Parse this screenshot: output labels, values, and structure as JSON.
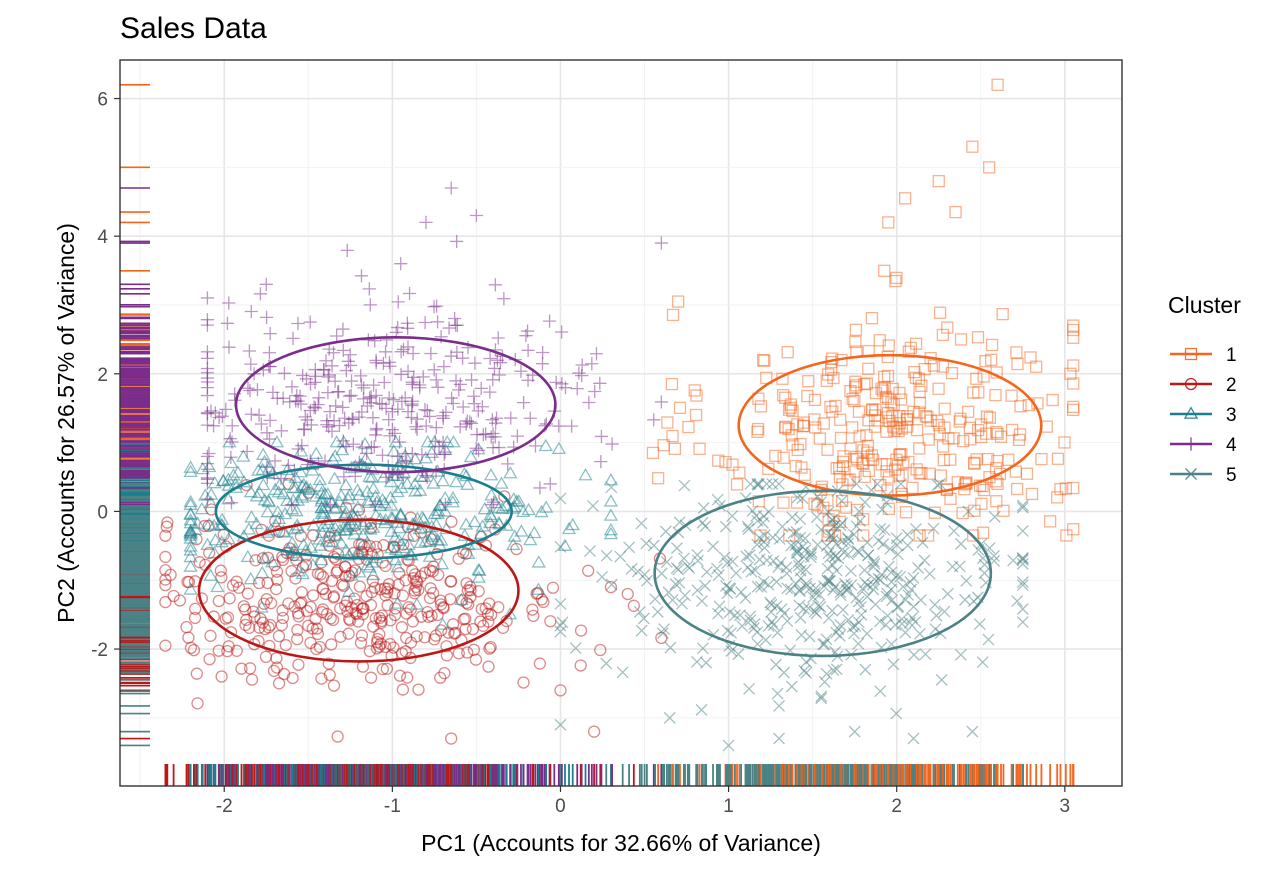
{
  "chart_data": {
    "type": "scatter",
    "title": "Sales Data",
    "xlabel": "PC1 (Accounts for 32.66% of Variance)",
    "ylabel": "PC2 (Accounts for 26.57% of Variance)",
    "xlim": [
      -2.62,
      3.34
    ],
    "ylim": [
      -3.99,
      6.56
    ],
    "xticks": [
      -2,
      -1,
      0,
      1,
      2,
      3
    ],
    "yticks": [
      -2,
      0,
      2,
      4,
      6
    ],
    "grid": true,
    "rug": [
      "left",
      "bottom"
    ],
    "legend": {
      "title": "Cluster",
      "position": "right",
      "items": [
        {
          "label": "1",
          "color": "#f4651e",
          "marker": "square"
        },
        {
          "label": "2",
          "color": "#bb1717",
          "marker": "circle"
        },
        {
          "label": "3",
          "color": "#1b7f8e",
          "marker": "triangle"
        },
        {
          "label": "4",
          "color": "#7b2d8b",
          "marker": "plus"
        },
        {
          "label": "5",
          "color": "#4a8286",
          "marker": "cross"
        }
      ]
    },
    "series": [
      {
        "name": "1",
        "color": "#f4651e",
        "marker": "square",
        "count": 330,
        "center": [
          2.0,
          1.2
        ],
        "spread": [
          0.55,
          0.85
        ],
        "x_range": [
          0.55,
          3.05
        ],
        "y_range": [
          -0.35,
          6.2
        ],
        "extremes": [
          [
            2.6,
            6.2
          ],
          [
            2.45,
            5.3
          ],
          [
            2.55,
            5.0
          ],
          [
            2.25,
            4.8
          ],
          [
            2.35,
            4.35
          ],
          [
            2.05,
            4.55
          ],
          [
            1.95,
            4.2
          ],
          [
            0.7,
            3.05
          ],
          [
            3.05,
            2.7
          ]
        ],
        "ellipse": {
          "cx": 1.96,
          "cy": 1.25,
          "rx": 0.9,
          "ry": 1.02
        }
      },
      {
        "name": "2",
        "color": "#bb1717",
        "marker": "circle",
        "count": 380,
        "center": [
          -1.2,
          -1.3
        ],
        "spread": [
          0.62,
          0.6
        ],
        "x_range": [
          -2.35,
          0.6
        ],
        "y_range": [
          -3.35,
          0.4
        ],
        "extremes": [
          [
            -2.35,
            -1.95
          ],
          [
            -0.65,
            -3.3
          ],
          [
            0.2,
            -3.2
          ],
          [
            0.0,
            -2.6
          ],
          [
            0.4,
            -1.2
          ],
          [
            0.3,
            -1.1
          ]
        ],
        "ellipse": {
          "cx": -1.2,
          "cy": -1.15,
          "rx": 0.95,
          "ry": 1.03
        }
      },
      {
        "name": "3",
        "color": "#1b7f8e",
        "marker": "triangle",
        "count": 370,
        "center": [
          -1.2,
          0.0
        ],
        "spread": [
          0.6,
          0.5
        ],
        "x_range": [
          -2.2,
          0.3
        ],
        "y_range": [
          -1.8,
          1.0
        ],
        "extremes": [
          [
            -2.2,
            -0.4
          ],
          [
            -0.7,
            -1.65
          ],
          [
            -0.3,
            -1.5
          ]
        ],
        "ellipse": {
          "cx": -1.17,
          "cy": 0.0,
          "rx": 0.88,
          "ry": 0.68
        }
      },
      {
        "name": "4",
        "color": "#7b2d8b",
        "marker": "plus",
        "count": 360,
        "center": [
          -1.05,
          1.6
        ],
        "spread": [
          0.65,
          0.7
        ],
        "x_range": [
          -2.1,
          0.6
        ],
        "y_range": [
          0.1,
          4.8
        ],
        "extremes": [
          [
            -0.65,
            4.7
          ],
          [
            -0.5,
            4.3
          ],
          [
            0.6,
            3.9
          ],
          [
            -0.95,
            3.6
          ],
          [
            -1.75,
            3.3
          ],
          [
            -0.8,
            4.2
          ]
        ],
        "ellipse": {
          "cx": -0.98,
          "cy": 1.55,
          "rx": 0.95,
          "ry": 0.98
        }
      },
      {
        "name": "5",
        "color": "#4a8286",
        "marker": "cross",
        "count": 420,
        "center": [
          1.5,
          -1.0
        ],
        "spread": [
          0.62,
          0.75
        ],
        "x_range": [
          0.0,
          2.75
        ],
        "y_range": [
          -3.5,
          0.4
        ],
        "extremes": [
          [
            1.0,
            -3.4
          ],
          [
            1.3,
            -3.3
          ],
          [
            1.75,
            -3.2
          ],
          [
            2.1,
            -3.3
          ],
          [
            2.45,
            -3.2
          ],
          [
            0.65,
            -3.0
          ]
        ],
        "ellipse": {
          "cx": 1.56,
          "cy": -0.9,
          "rx": 1.0,
          "ry": 1.2
        }
      }
    ]
  }
}
